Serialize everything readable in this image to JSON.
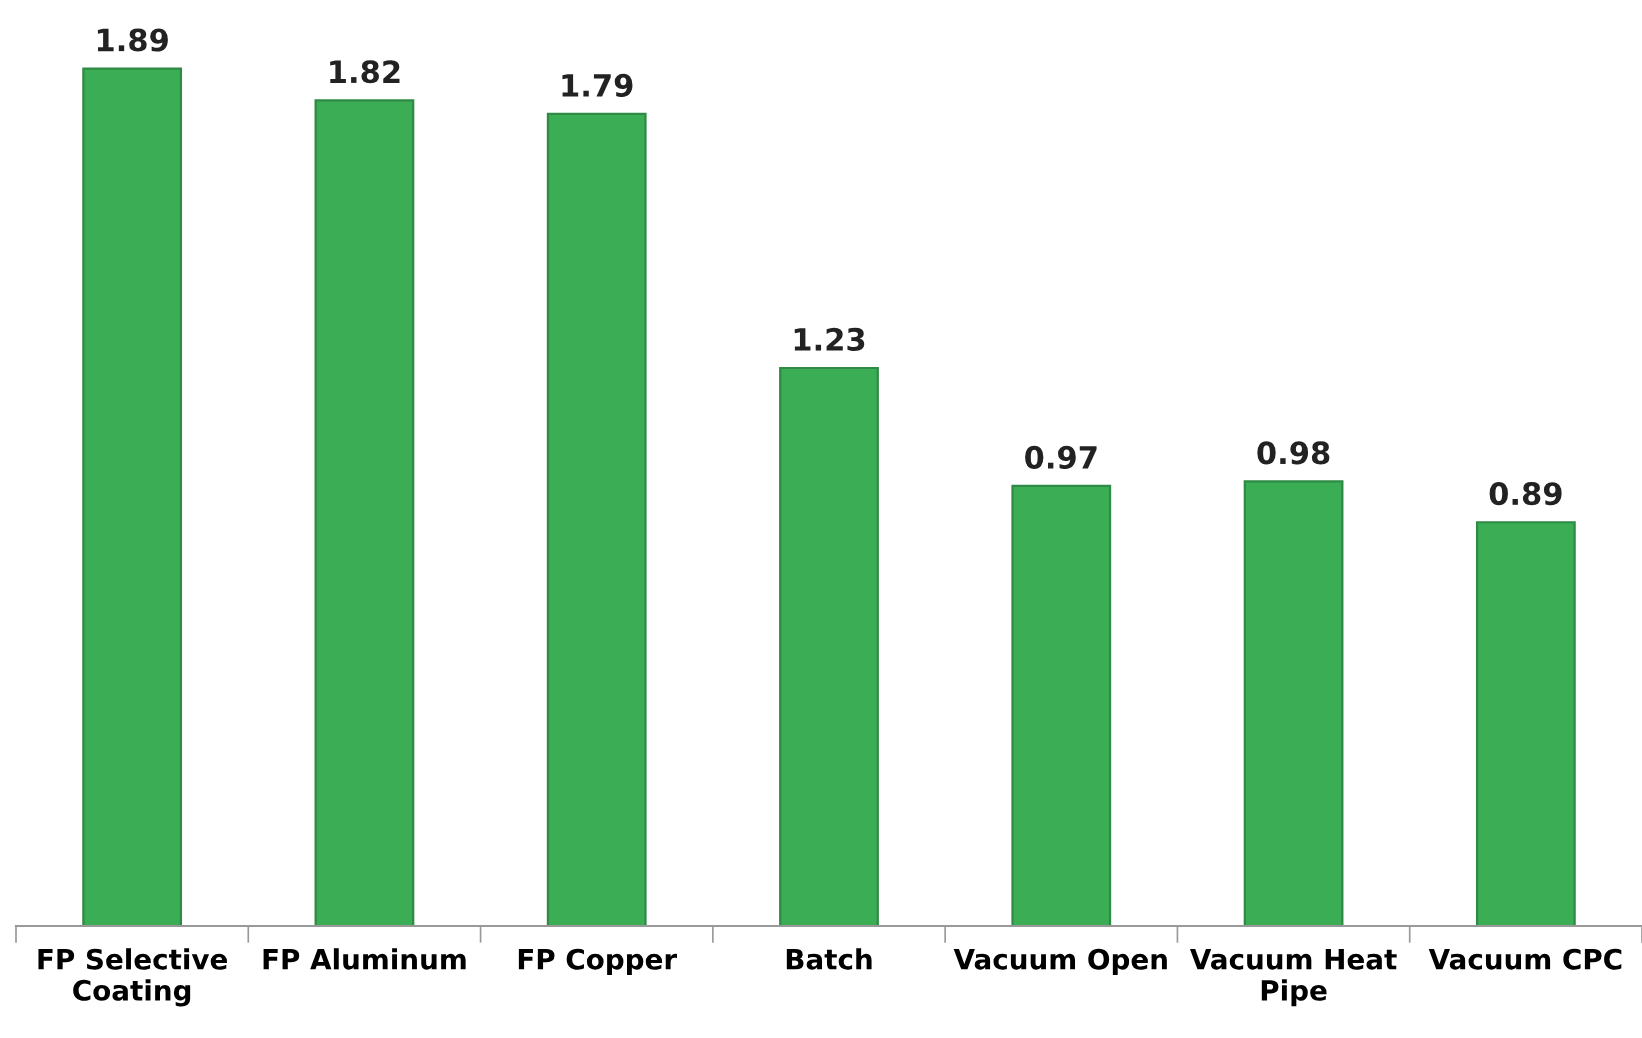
{
  "chart_data": {
    "type": "bar",
    "categories": [
      "FP Selective Coating",
      "FP Aluminum",
      "FP Copper",
      "Batch",
      "Vacuum Open",
      "Vacuum Heat Pipe",
      "Vacuum CPC"
    ],
    "values": [
      1.89,
      1.82,
      1.79,
      1.23,
      0.97,
      0.98,
      0.89
    ],
    "color": "#3aad55",
    "data_labels": true,
    "grid": false,
    "legend": false
  }
}
